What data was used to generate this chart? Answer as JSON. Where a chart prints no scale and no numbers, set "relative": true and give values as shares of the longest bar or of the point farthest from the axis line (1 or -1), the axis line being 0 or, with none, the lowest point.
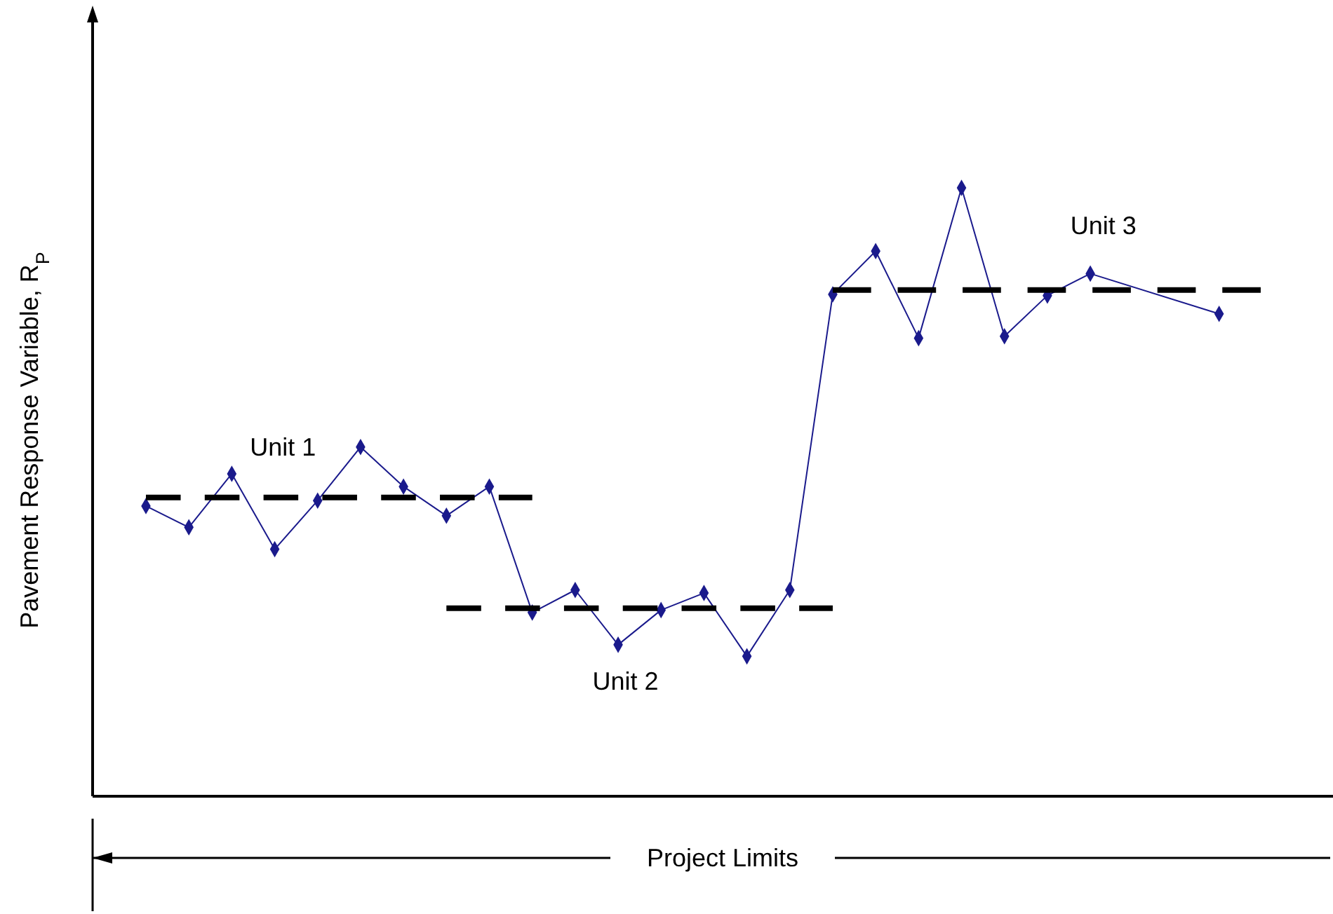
{
  "chart_data": {
    "type": "line",
    "relative": true,
    "ylabel": "Pavement Response Variable, R$_{P}$",
    "xlabel": "Project Limits",
    "categories": [
      null,
      null,
      null,
      null,
      null,
      null,
      null,
      null,
      null,
      null,
      null,
      null,
      null,
      null,
      null,
      null,
      null,
      null,
      null,
      null,
      null,
      null,
      null,
      null,
      null,
      null,
      null,
      null
    ],
    "series": [
      {
        "color": "#1a1a8c",
        "marker": "diamond",
        "line_style": "solid",
        "values": [
          0.477,
          0.442,
          0.53,
          0.406,
          0.486,
          0.574,
          0.509,
          0.461,
          0.509,
          0.302,
          0.339,
          0.249,
          0.306,
          0.334,
          0.23,
          0.339,
          0.825,
          0.896,
          0.753,
          1,
          0.756,
          0.823,
          0.859,
          null,
          null,
          0.793,
          null,
          null
        ]
      },
      {
        "name": "Unit 1",
        "color": "#000000",
        "marker": "none",
        "line_style": "dashed",
        "values": [
          0.491,
          0.491,
          0.491,
          0.491,
          0.491,
          0.491,
          0.491,
          0.491,
          0.491,
          0.491,
          null,
          null,
          null,
          null,
          null,
          null,
          null,
          null,
          null,
          null,
          null,
          null,
          null,
          null,
          null,
          null,
          null,
          null
        ]
      },
      {
        "name": "Unit 2",
        "color": "#000000",
        "marker": "none",
        "line_style": "dashed",
        "values": [
          null,
          null,
          null,
          null,
          null,
          null,
          null,
          0.309,
          0.309,
          0.309,
          0.309,
          0.309,
          0.309,
          0.309,
          0.309,
          0.309,
          0.309,
          null,
          null,
          null,
          null,
          null,
          null,
          null,
          null,
          null,
          null,
          null
        ]
      },
      {
        "name": "Unit 3",
        "color": "#000000",
        "marker": "none",
        "line_style": "dashed",
        "values": [
          null,
          null,
          null,
          null,
          null,
          null,
          null,
          null,
          null,
          null,
          null,
          null,
          null,
          null,
          null,
          null,
          0.832,
          0.832,
          0.832,
          0.832,
          0.832,
          0.832,
          0.832,
          0.832,
          0.832,
          0.832,
          0.832,
          null
        ]
      }
    ]
  }
}
